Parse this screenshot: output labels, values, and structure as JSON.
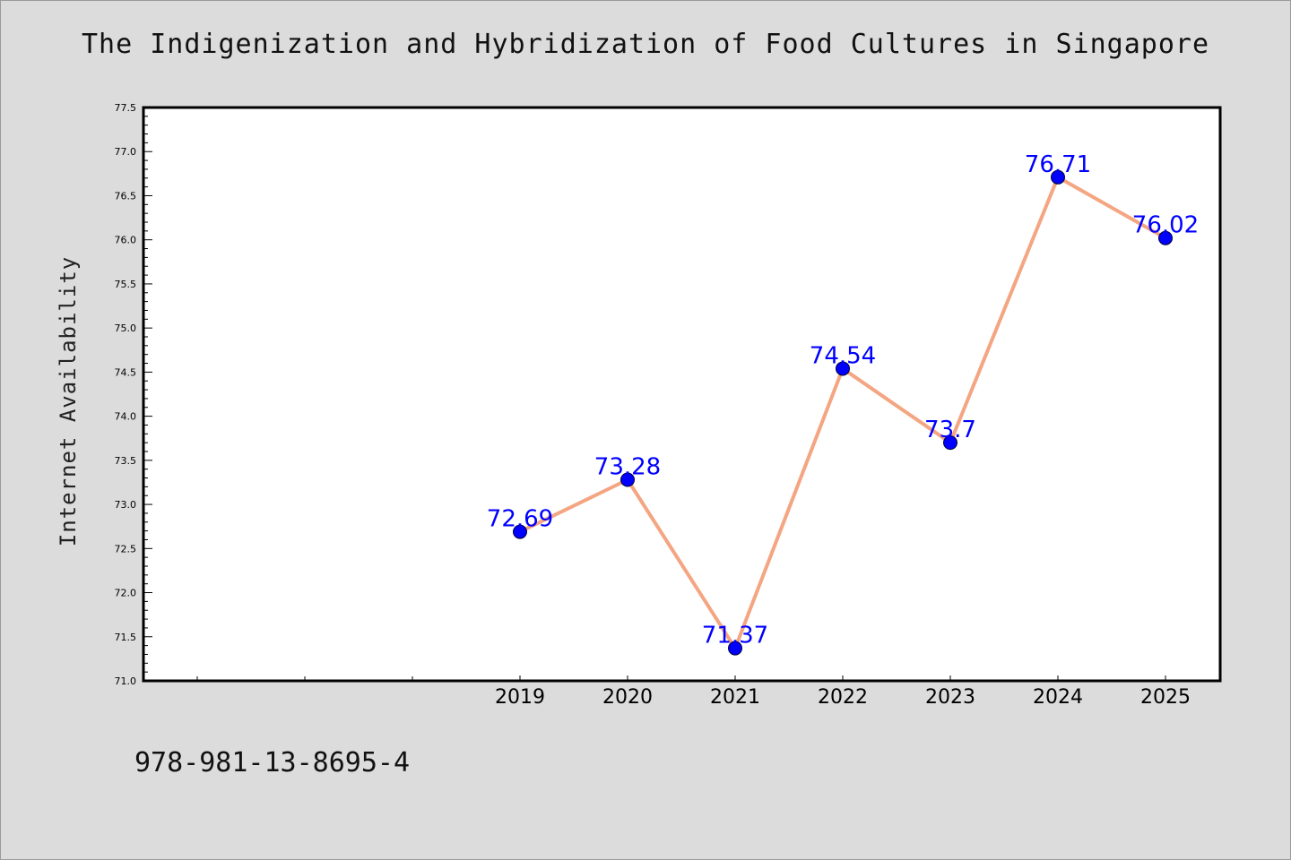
{
  "chart_data": {
    "type": "line",
    "title": "The Indigenization and Hybridization of Food Cultures in Singapore",
    "xlabel": "",
    "ylabel": "Internet Availability",
    "x": [
      "2019",
      "2020",
      "2021",
      "2022",
      "2023",
      "2024",
      "2025"
    ],
    "series": [
      {
        "values": [
          72.69,
          73.28,
          71.37,
          74.54,
          73.7,
          76.71,
          76.02
        ],
        "labels": [
          "72.69",
          "73.28",
          "71.37",
          "74.54",
          "73.7",
          "76.71",
          "76.02"
        ]
      }
    ],
    "ylim": [
      71.0,
      77.5
    ],
    "yticks": [
      "71.0",
      "71.5",
      "72.0",
      "72.5",
      "73.0",
      "73.5",
      "74.0",
      "74.5",
      "75.0",
      "75.5",
      "76.0",
      "76.5",
      "77.0",
      "77.5"
    ],
    "x_leading_empty_slots": 3,
    "grid": false,
    "legend": "none",
    "colors": {
      "line": "#f4a582",
      "marker": "#0000ff",
      "data_label": "#0000ff",
      "axis": "#000000",
      "background": "#dcdcdc",
      "plot_background": "#ffffff"
    }
  },
  "footer": {
    "isbn": "978-981-13-8695-4"
  }
}
